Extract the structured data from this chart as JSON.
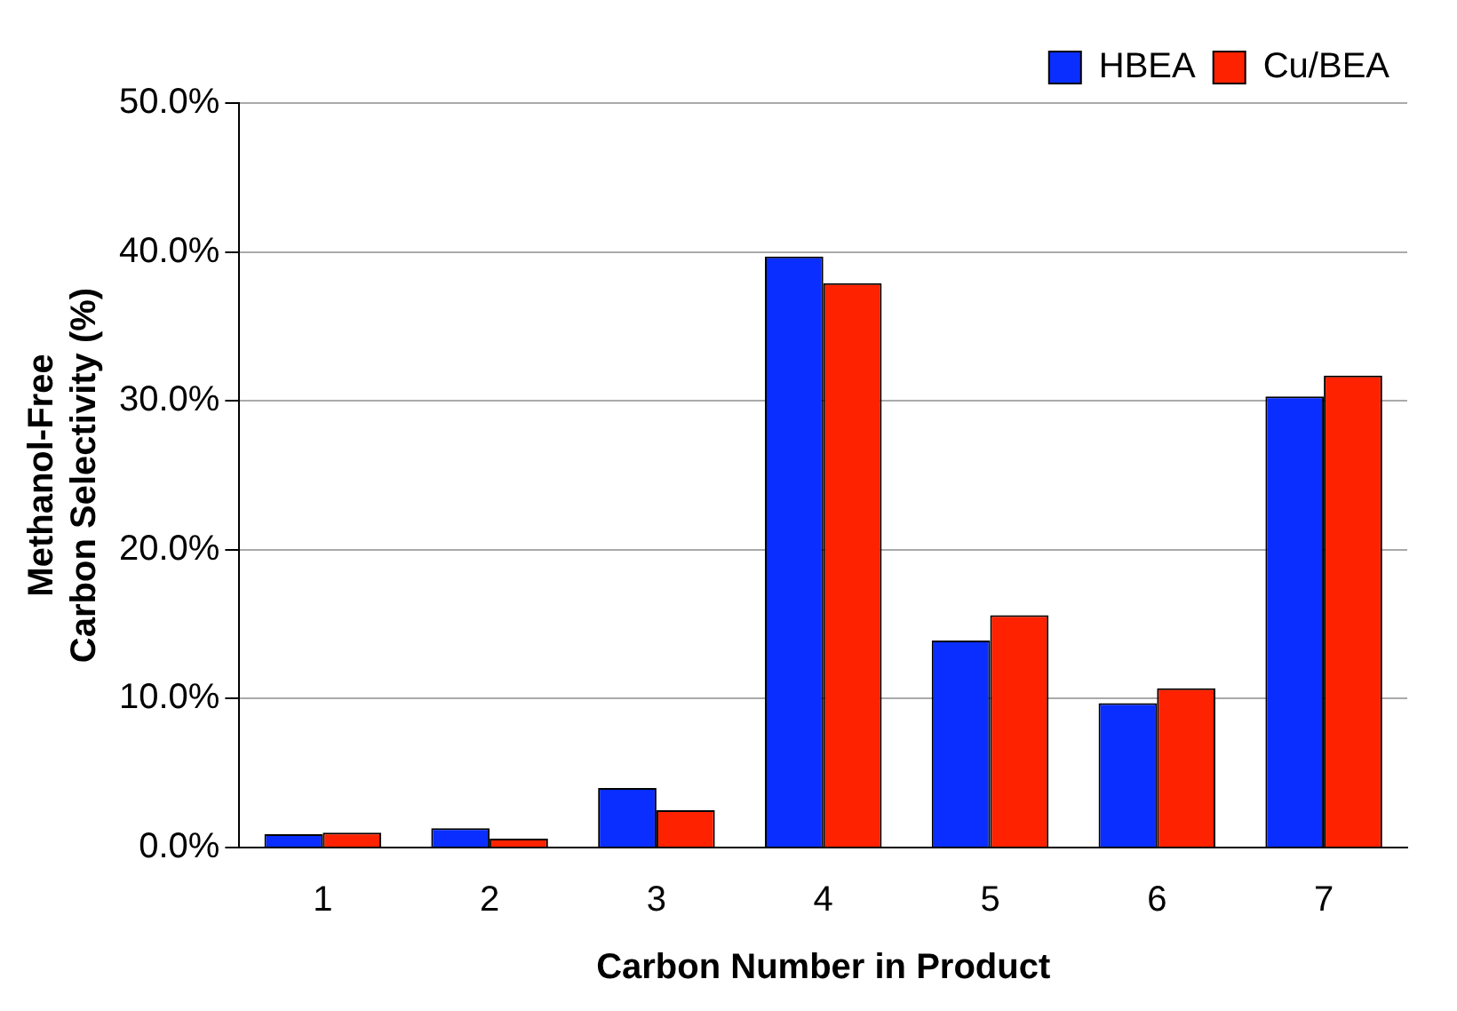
{
  "chart_data": {
    "type": "bar",
    "xlabel": "Carbon Number in Product",
    "ylabel": "Methanol-Free\nCarbon Selectivity (%)",
    "categories": [
      "1",
      "2",
      "3",
      "4",
      "5",
      "6",
      "7"
    ],
    "series": [
      {
        "name": "HBEA",
        "color": "#0a2eff",
        "values": [
          0.9,
          1.3,
          4.0,
          39.7,
          13.9,
          9.7,
          30.3
        ]
      },
      {
        "name": "Cu/BEA",
        "color": "#ff2200",
        "values": [
          1.0,
          0.6,
          2.5,
          37.9,
          15.6,
          10.7,
          31.7
        ]
      }
    ],
    "ylim": [
      0,
      50
    ],
    "yticks": [
      {
        "value": 0,
        "label": "0.0%"
      },
      {
        "value": 10,
        "label": "10.0%"
      },
      {
        "value": 20,
        "label": "20.0%"
      },
      {
        "value": 30,
        "label": "30.0%"
      },
      {
        "value": 40,
        "label": "40.0%"
      },
      {
        "value": 50,
        "label": "50.0%"
      }
    ],
    "grid": "y",
    "legend": "top right"
  }
}
